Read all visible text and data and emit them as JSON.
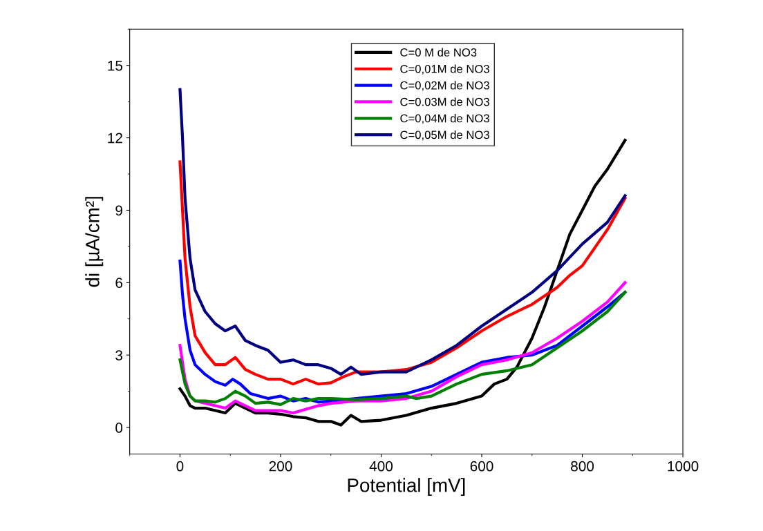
{
  "chart_data": {
    "type": "line",
    "xlabel": "Potential [mV]",
    "ylabel": "di [µA/cm²]",
    "xlim": [
      -100,
      1000
    ],
    "xticks": [
      0,
      200,
      400,
      600,
      800,
      1000
    ],
    "ylim": [
      -1.1,
      16.5
    ],
    "yticks": [
      0,
      3,
      6,
      9,
      12,
      15
    ],
    "legend": "top center",
    "grid": false,
    "line_style": "solid",
    "marker": "none",
    "series": [
      {
        "name": "C=0 M de NO3",
        "color": "#000000",
        "x": [
          0,
          10,
          20,
          30,
          50,
          70,
          90,
          110,
          130,
          150,
          175,
          200,
          225,
          250,
          275,
          300,
          320,
          340,
          360,
          400,
          450,
          500,
          550,
          600,
          625,
          650,
          670,
          700,
          725,
          750,
          775,
          800,
          825,
          850,
          885
        ],
        "values": [
          1.6,
          1.3,
          0.9,
          0.8,
          0.8,
          0.7,
          0.6,
          1.0,
          0.8,
          0.6,
          0.6,
          0.55,
          0.45,
          0.4,
          0.25,
          0.25,
          0.1,
          0.5,
          0.25,
          0.3,
          0.5,
          0.8,
          1.0,
          1.3,
          1.8,
          2.0,
          2.5,
          3.7,
          5.0,
          6.5,
          8.0,
          9.0,
          10.0,
          10.7,
          11.9
        ]
      },
      {
        "name": "C=0,01M de NO3",
        "color": "#ff0000",
        "x": [
          0,
          5,
          10,
          20,
          30,
          50,
          70,
          90,
          110,
          130,
          150,
          175,
          200,
          225,
          250,
          275,
          300,
          325,
          350,
          400,
          450,
          500,
          550,
          600,
          650,
          700,
          750,
          775,
          800,
          850,
          885
        ],
        "values": [
          11.0,
          9.0,
          7.0,
          5.0,
          3.8,
          3.1,
          2.6,
          2.6,
          2.9,
          2.4,
          2.2,
          2.0,
          2.0,
          1.8,
          2.0,
          1.8,
          1.85,
          2.1,
          2.3,
          2.3,
          2.4,
          2.7,
          3.3,
          4.0,
          4.6,
          5.1,
          5.8,
          6.3,
          6.7,
          8.2,
          9.5
        ]
      },
      {
        "name": "C=0,02M de NO3",
        "color": "#0000ff",
        "x": [
          0,
          5,
          10,
          20,
          30,
          50,
          70,
          90,
          105,
          120,
          140,
          175,
          200,
          225,
          250,
          275,
          300,
          350,
          400,
          450,
          500,
          550,
          600,
          650,
          700,
          750,
          800,
          850,
          885
        ],
        "values": [
          6.9,
          5.5,
          4.5,
          3.2,
          2.6,
          2.2,
          1.9,
          1.75,
          2.0,
          1.8,
          1.4,
          1.2,
          1.3,
          1.1,
          1.2,
          1.05,
          1.1,
          1.2,
          1.3,
          1.4,
          1.7,
          2.2,
          2.7,
          2.9,
          3.0,
          3.4,
          4.2,
          5.0,
          5.6
        ]
      },
      {
        "name": "C=0.03M de NO3",
        "color": "#ff00ff",
        "x": [
          0,
          10,
          20,
          30,
          50,
          70,
          90,
          110,
          130,
          150,
          175,
          200,
          225,
          250,
          275,
          300,
          350,
          400,
          450,
          500,
          550,
          600,
          650,
          700,
          750,
          800,
          850,
          885
        ],
        "values": [
          3.4,
          2.0,
          1.3,
          1.1,
          1.0,
          0.9,
          0.8,
          1.1,
          0.9,
          0.7,
          0.7,
          0.7,
          0.6,
          0.75,
          0.9,
          1.0,
          1.1,
          1.1,
          1.2,
          1.5,
          2.1,
          2.6,
          2.8,
          3.1,
          3.7,
          4.4,
          5.2,
          6.0
        ]
      },
      {
        "name": "C=0,04M de NO3",
        "color": "#008000",
        "x": [
          0,
          10,
          20,
          30,
          50,
          70,
          90,
          110,
          130,
          150,
          175,
          200,
          225,
          250,
          275,
          300,
          350,
          400,
          450,
          470,
          500,
          550,
          600,
          650,
          700,
          750,
          800,
          850,
          885
        ],
        "values": [
          2.8,
          1.8,
          1.3,
          1.1,
          1.1,
          1.05,
          1.2,
          1.5,
          1.3,
          1.0,
          1.05,
          0.95,
          1.2,
          1.1,
          1.2,
          1.2,
          1.15,
          1.2,
          1.3,
          1.2,
          1.3,
          1.8,
          2.2,
          2.35,
          2.6,
          3.3,
          4.0,
          4.8,
          5.6
        ]
      },
      {
        "name": "C=0,05M de NO3",
        "color": "#000080",
        "x": [
          0,
          5,
          10,
          20,
          30,
          50,
          70,
          90,
          110,
          130,
          150,
          175,
          200,
          225,
          250,
          275,
          300,
          320,
          340,
          360,
          400,
          450,
          500,
          550,
          600,
          650,
          700,
          750,
          800,
          850,
          885
        ],
        "values": [
          14.0,
          12.0,
          9.5,
          7.0,
          5.7,
          4.8,
          4.3,
          4.0,
          4.2,
          3.6,
          3.4,
          3.2,
          2.7,
          2.8,
          2.6,
          2.6,
          2.45,
          2.2,
          2.5,
          2.2,
          2.3,
          2.3,
          2.8,
          3.4,
          4.2,
          4.9,
          5.6,
          6.5,
          7.6,
          8.5,
          9.6
        ]
      }
    ]
  }
}
